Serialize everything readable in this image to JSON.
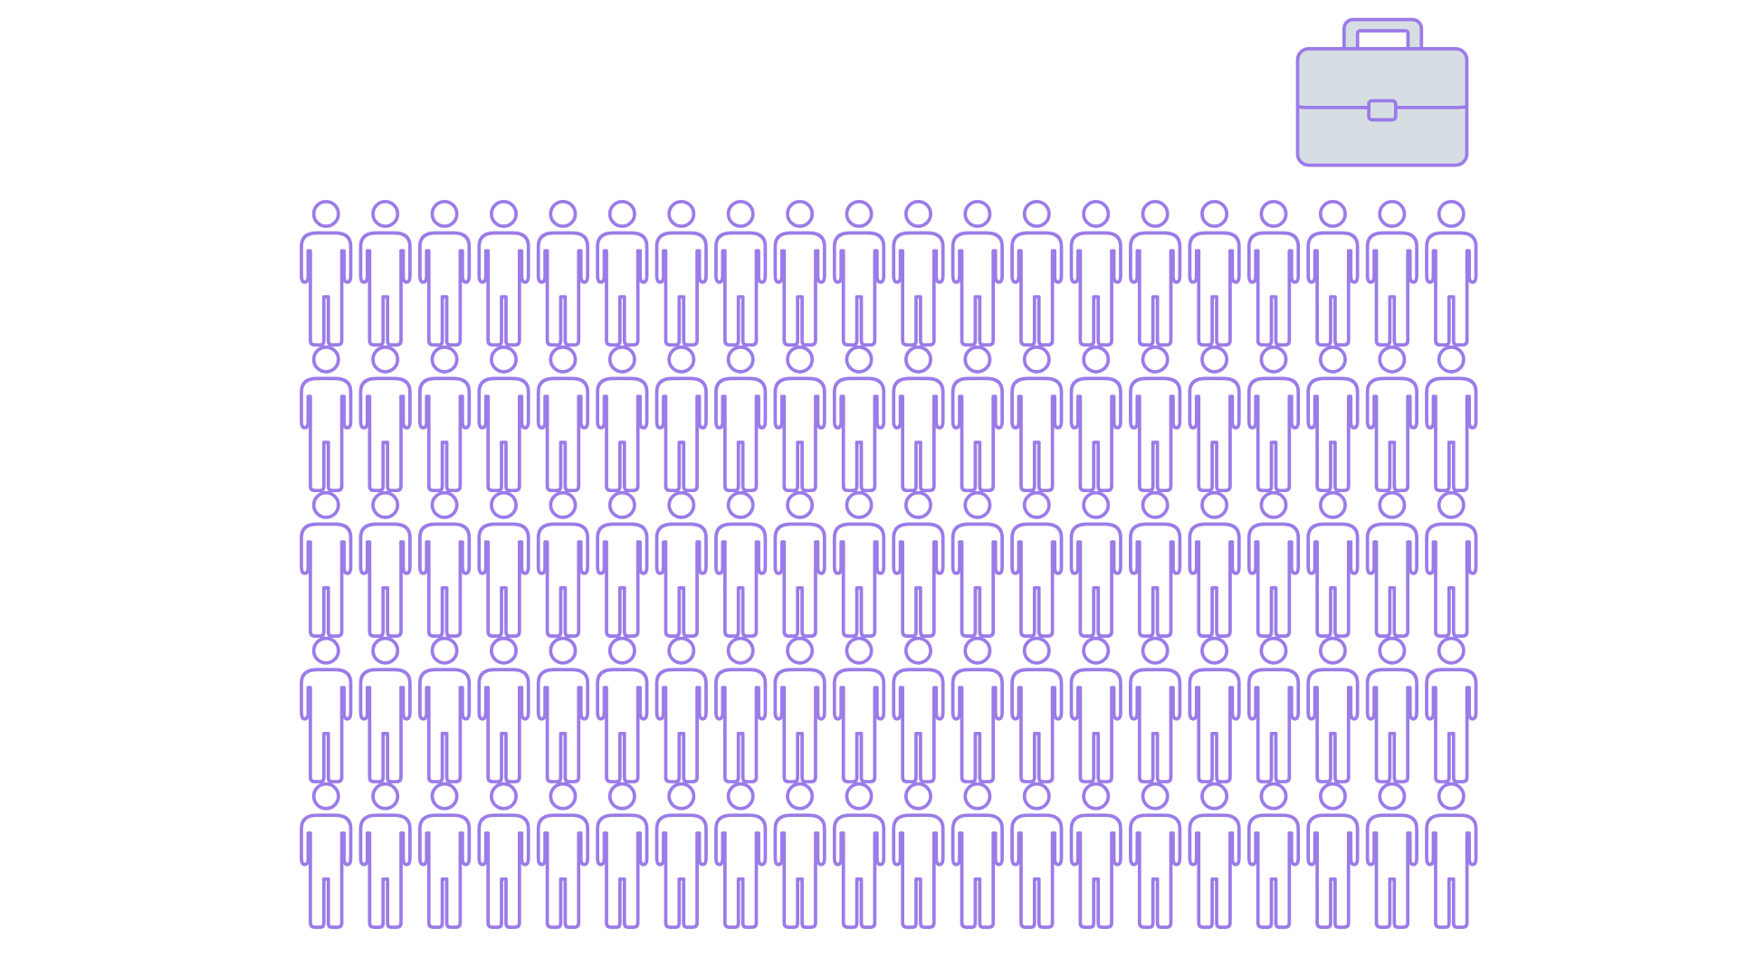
{
  "icons": {
    "case": "briefcase-icon",
    "person": "person-icon"
  },
  "colors": {
    "outline": "#9B7BE8",
    "case_fill": "#D7DEE3",
    "background": "#FFFFFF"
  },
  "grid": {
    "rows": 5,
    "columns": 20,
    "count": 100
  }
}
